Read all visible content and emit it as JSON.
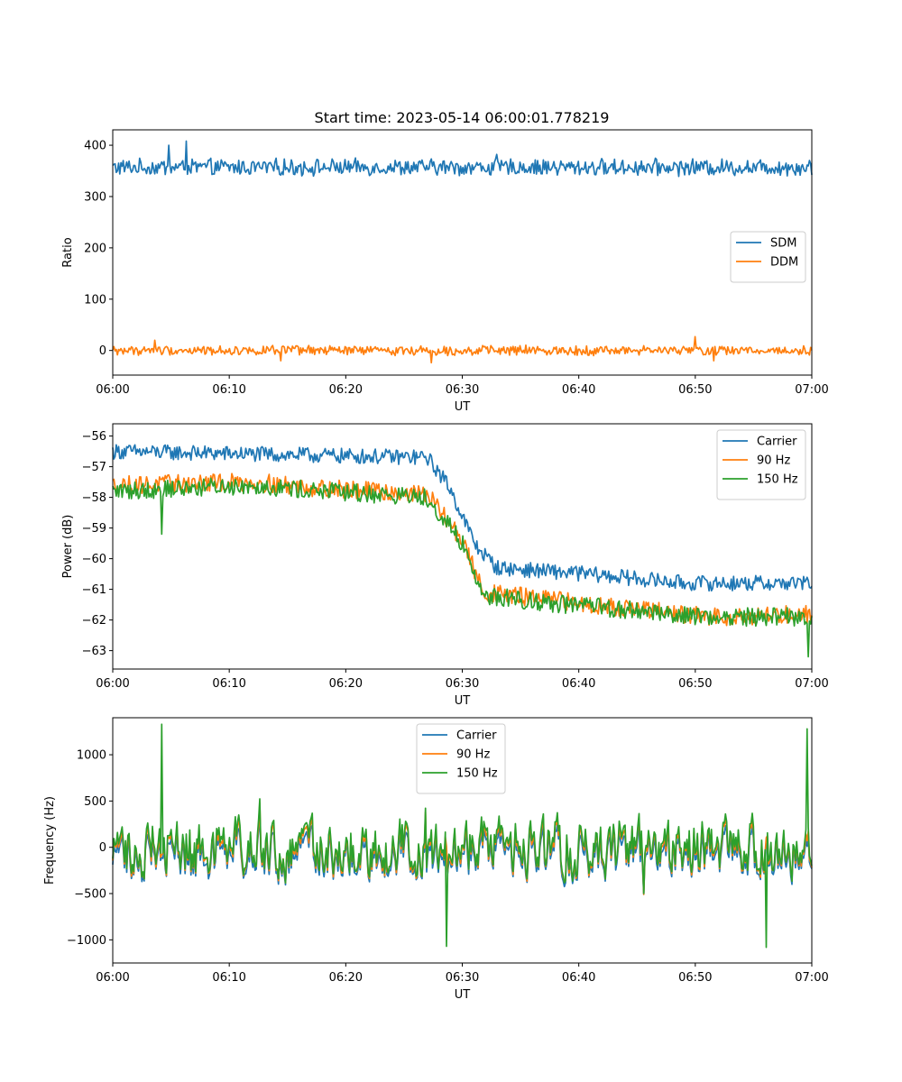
{
  "figure": {
    "title": "Start time: 2023-05-14 06:00:01.778219"
  },
  "chart_data": [
    {
      "type": "line",
      "title": "Start time: 2023-05-14 06:00:01.778219",
      "xlabel": "UT",
      "ylabel": "Ratio",
      "xlim": [
        "06:00",
        "07:00"
      ],
      "ylim": [
        -48,
        430
      ],
      "x_ticks": [
        "06:00",
        "06:10",
        "06:20",
        "06:30",
        "06:40",
        "06:50",
        "07:00"
      ],
      "y_ticks": [
        0,
        100,
        200,
        300,
        400
      ],
      "grid": false,
      "legend": "center-right",
      "series": [
        {
          "name": "SDM",
          "color": "#1f77b4",
          "mean": 357,
          "noise": 14,
          "spikes": [
            [
              0.08,
              400
            ],
            [
              0.105,
              408
            ],
            [
              0.55,
              382
            ]
          ]
        },
        {
          "name": "DDM",
          "color": "#ff7f0e",
          "mean": 0,
          "noise": 8,
          "spikes": [
            [
              0.06,
              20
            ],
            [
              0.24,
              -20
            ],
            [
              0.455,
              -24
            ],
            [
              0.833,
              27
            ],
            [
              0.86,
              -20
            ]
          ]
        }
      ]
    },
    {
      "type": "line",
      "title": "",
      "xlabel": "UT",
      "ylabel": "Power (dB)",
      "xlim": [
        "06:00",
        "07:00"
      ],
      "ylim": [
        -63.6,
        -55.6
      ],
      "x_ticks": [
        "06:00",
        "06:10",
        "06:20",
        "06:30",
        "06:40",
        "06:50",
        "07:00"
      ],
      "y_ticks": [
        -56,
        -57,
        -58,
        -59,
        -60,
        -61,
        -62,
        -63
      ],
      "grid": false,
      "legend": "top-right",
      "series": [
        {
          "name": "Carrier",
          "color": "#1f77b4",
          "levels": [
            [
              0,
              -56.5
            ],
            [
              0.45,
              -56.7
            ],
            [
              0.48,
              -57.6
            ],
            [
              0.52,
              -59.6
            ],
            [
              0.55,
              -60.3
            ],
            [
              0.68,
              -60.5
            ],
            [
              0.82,
              -60.8
            ],
            [
              1.0,
              -60.8
            ]
          ],
          "noise": 0.25
        },
        {
          "name": "90 Hz",
          "color": "#ff7f0e",
          "levels": [
            [
              0,
              -57.6
            ],
            [
              0.2,
              -57.5
            ],
            [
              0.3,
              -57.7
            ],
            [
              0.45,
              -57.9
            ],
            [
              0.5,
              -59.4
            ],
            [
              0.53,
              -61.1
            ],
            [
              0.65,
              -61.4
            ],
            [
              0.85,
              -61.9
            ],
            [
              1.0,
              -61.8
            ]
          ],
          "noise": 0.3
        },
        {
          "name": "150 Hz",
          "color": "#2ca02c",
          "levels": [
            [
              0,
              -57.8
            ],
            [
              0.2,
              -57.6
            ],
            [
              0.3,
              -57.8
            ],
            [
              0.45,
              -58.0
            ],
            [
              0.5,
              -59.5
            ],
            [
              0.53,
              -61.2
            ],
            [
              0.65,
              -61.5
            ],
            [
              0.85,
              -61.9
            ],
            [
              1.0,
              -61.9
            ]
          ],
          "noise": 0.3,
          "spikes": [
            [
              0.07,
              -59.2
            ],
            [
              0.995,
              -63.2
            ]
          ]
        }
      ]
    },
    {
      "type": "line",
      "title": "",
      "xlabel": "UT",
      "ylabel": "Frequency (Hz)",
      "xlim": [
        "06:00",
        "07:00"
      ],
      "ylim": [
        -1250,
        1400
      ],
      "x_ticks": [
        "06:00",
        "06:10",
        "06:20",
        "06:30",
        "06:40",
        "06:50",
        "07:00"
      ],
      "y_ticks": [
        -1000,
        -500,
        0,
        500,
        1000
      ],
      "grid": false,
      "legend": "upper-center",
      "series": [
        {
          "name": "Carrier",
          "color": "#1f77b4",
          "offset": -80,
          "amplitude": 420
        },
        {
          "name": "90 Hz",
          "color": "#ff7f0e",
          "offset": -30,
          "amplitude": 450
        },
        {
          "name": "150 Hz",
          "color": "#2ca02c",
          "offset": 0,
          "amplitude": 480,
          "spikes": [
            [
              0.07,
              1330
            ],
            [
              0.994,
              1280
            ],
            [
              0.477,
              -1070
            ],
            [
              0.935,
              -1080
            ]
          ]
        }
      ]
    }
  ]
}
